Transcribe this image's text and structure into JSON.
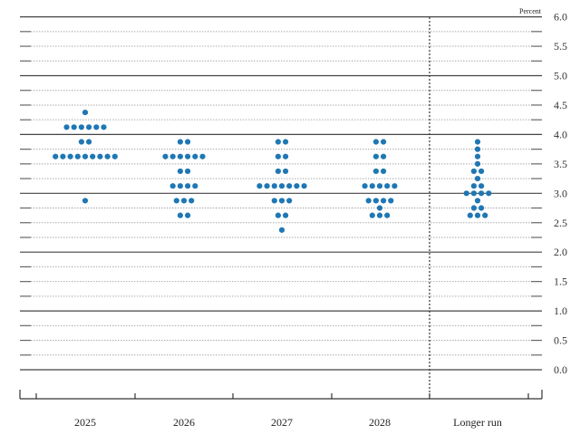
{
  "chart_data": {
    "type": "scatter",
    "subtype": "dot-plot",
    "title": "",
    "xlabel": "",
    "ylabel": "Percent",
    "ylim": [
      0.0,
      6.0
    ],
    "yticks": [
      "0.0",
      "0.5",
      "1.0",
      "1.5",
      "2.0",
      "2.5",
      "3.0",
      "3.5",
      "4.0",
      "4.5",
      "5.0",
      "5.5",
      "6.0"
    ],
    "y_axis_position": "right",
    "grid": "solid lines at whole numbers, dotted lines at 0.25 steps",
    "categories": [
      "2025",
      "2026",
      "2027",
      "2028",
      "Longer run"
    ],
    "divider_before": "Longer run",
    "dot_color": "#1f77b4",
    "series": [
      {
        "name": "2025",
        "points": [
          {
            "value": 4.375,
            "count": 1
          },
          {
            "value": 4.125,
            "count": 6
          },
          {
            "value": 3.875,
            "count": 2
          },
          {
            "value": 3.625,
            "count": 9
          },
          {
            "value": 2.875,
            "count": 1
          }
        ]
      },
      {
        "name": "2026",
        "points": [
          {
            "value": 3.875,
            "count": 2
          },
          {
            "value": 3.625,
            "count": 6
          },
          {
            "value": 3.375,
            "count": 2
          },
          {
            "value": 3.125,
            "count": 4
          },
          {
            "value": 2.875,
            "count": 3
          },
          {
            "value": 2.625,
            "count": 2
          }
        ]
      },
      {
        "name": "2027",
        "points": [
          {
            "value": 3.875,
            "count": 2
          },
          {
            "value": 3.625,
            "count": 2
          },
          {
            "value": 3.375,
            "count": 2
          },
          {
            "value": 3.125,
            "count": 7
          },
          {
            "value": 2.875,
            "count": 3
          },
          {
            "value": 2.625,
            "count": 2
          },
          {
            "value": 2.375,
            "count": 1
          }
        ]
      },
      {
        "name": "2028",
        "points": [
          {
            "value": 3.875,
            "count": 2
          },
          {
            "value": 3.625,
            "count": 2
          },
          {
            "value": 3.375,
            "count": 2
          },
          {
            "value": 3.125,
            "count": 5
          },
          {
            "value": 2.875,
            "count": 4
          },
          {
            "value": 2.75,
            "count": 1
          },
          {
            "value": 2.625,
            "count": 3
          }
        ]
      },
      {
        "name": "Longer run",
        "points": [
          {
            "value": 3.875,
            "count": 1
          },
          {
            "value": 3.75,
            "count": 1
          },
          {
            "value": 3.625,
            "count": 1
          },
          {
            "value": 3.5,
            "count": 1
          },
          {
            "value": 3.375,
            "count": 2
          },
          {
            "value": 3.25,
            "count": 1
          },
          {
            "value": 3.125,
            "count": 2
          },
          {
            "value": 3.0,
            "count": 4
          },
          {
            "value": 2.875,
            "count": 1
          },
          {
            "value": 2.75,
            "count": 2
          },
          {
            "value": 2.625,
            "count": 3
          }
        ]
      }
    ]
  },
  "labels": {
    "unit": "Percent"
  }
}
